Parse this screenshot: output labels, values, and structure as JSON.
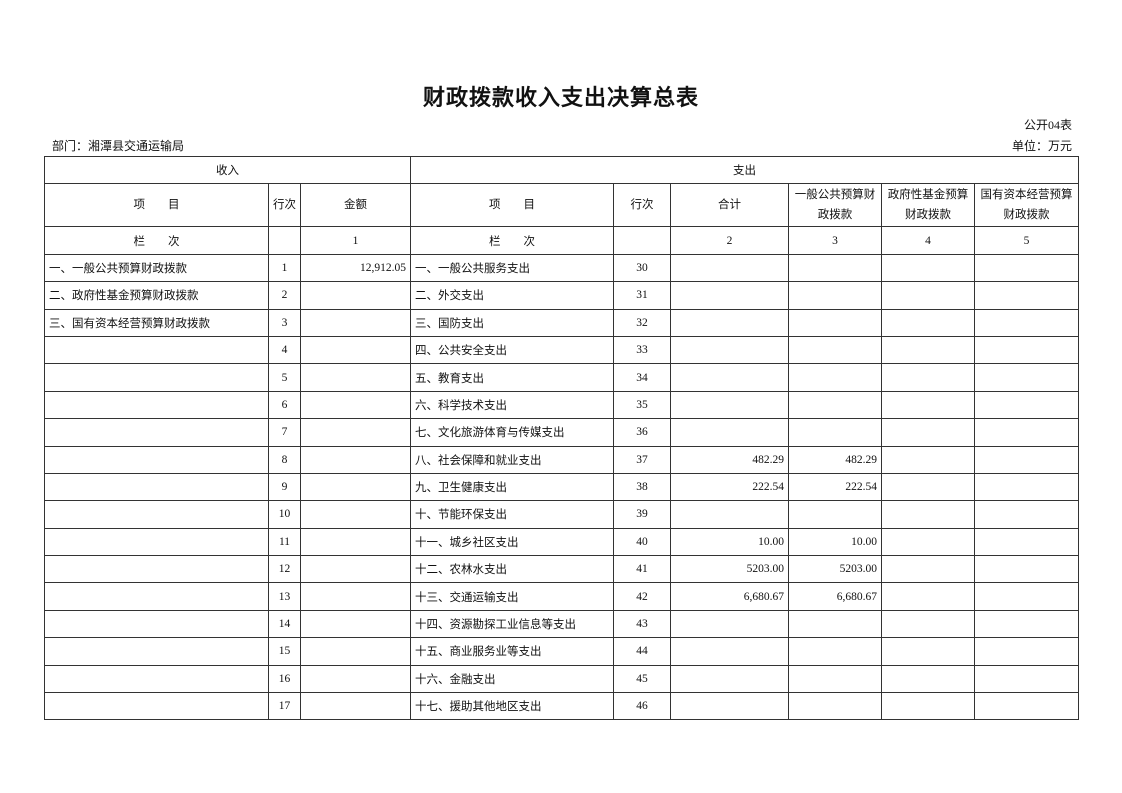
{
  "title": "财政拨款收入支出决算总表",
  "form_no": "公开04表",
  "department": "部门：湘潭县交通运输局",
  "unit": "单位：万元",
  "headers": {
    "income": "收入",
    "expense": "支出",
    "item": "项　　目",
    "row_no_income": "行次",
    "amount": "金额",
    "item2": "项　　目",
    "row_no": "行次",
    "total": "合计",
    "general": "一般公共预算财政拨款",
    "fund": "政府性基金预算财政拨款",
    "state": "国有资本经营预算财政拨款",
    "col_label": "栏　　次",
    "col1": "1",
    "col_label2": "栏　　次",
    "col2": "2",
    "col3": "3",
    "col4": "4",
    "col5": "5"
  },
  "rows": [
    {
      "in_item": "一、一般公共预算财政拨款",
      "in_no": "1",
      "in_amt": "12,912.05",
      "ex_item": "一、一般公共服务支出",
      "ex_no": "30",
      "total": "",
      "general": "",
      "fund": "",
      "state": ""
    },
    {
      "in_item": "二、政府性基金预算财政拨款",
      "in_no": "2",
      "in_amt": "",
      "ex_item": "二、外交支出",
      "ex_no": "31",
      "total": "",
      "general": "",
      "fund": "",
      "state": ""
    },
    {
      "in_item": "三、国有资本经营预算财政拨款",
      "in_no": "3",
      "in_amt": "",
      "ex_item": "三、国防支出",
      "ex_no": "32",
      "total": "",
      "general": "",
      "fund": "",
      "state": ""
    },
    {
      "in_item": "",
      "in_no": "4",
      "in_amt": "",
      "ex_item": "四、公共安全支出",
      "ex_no": "33",
      "total": "",
      "general": "",
      "fund": "",
      "state": ""
    },
    {
      "in_item": "",
      "in_no": "5",
      "in_amt": "",
      "ex_item": "五、教育支出",
      "ex_no": "34",
      "total": "",
      "general": "",
      "fund": "",
      "state": ""
    },
    {
      "in_item": "",
      "in_no": "6",
      "in_amt": "",
      "ex_item": "六、科学技术支出",
      "ex_no": "35",
      "total": "",
      "general": "",
      "fund": "",
      "state": ""
    },
    {
      "in_item": "",
      "in_no": "7",
      "in_amt": "",
      "ex_item": "七、文化旅游体育与传媒支出",
      "ex_no": "36",
      "total": "",
      "general": "",
      "fund": "",
      "state": ""
    },
    {
      "in_item": "",
      "in_no": "8",
      "in_amt": "",
      "ex_item": "八、社会保障和就业支出",
      "ex_no": "37",
      "total": "482.29",
      "general": "482.29",
      "fund": "",
      "state": ""
    },
    {
      "in_item": "",
      "in_no": "9",
      "in_amt": "",
      "ex_item": "九、卫生健康支出",
      "ex_no": "38",
      "total": "222.54",
      "general": "222.54",
      "fund": "",
      "state": ""
    },
    {
      "in_item": "",
      "in_no": "10",
      "in_amt": "",
      "ex_item": "十、节能环保支出",
      "ex_no": "39",
      "total": "",
      "general": "",
      "fund": "",
      "state": ""
    },
    {
      "in_item": "",
      "in_no": "11",
      "in_amt": "",
      "ex_item": "十一、城乡社区支出",
      "ex_no": "40",
      "total": "10.00",
      "general": "10.00",
      "fund": "",
      "state": ""
    },
    {
      "in_item": "",
      "in_no": "12",
      "in_amt": "",
      "ex_item": "十二、农林水支出",
      "ex_no": "41",
      "total": "5203.00",
      "general": "5203.00",
      "fund": "",
      "state": ""
    },
    {
      "in_item": "",
      "in_no": "13",
      "in_amt": "",
      "ex_item": "十三、交通运输支出",
      "ex_no": "42",
      "total": "6,680.67",
      "general": "6,680.67",
      "fund": "",
      "state": ""
    },
    {
      "in_item": "",
      "in_no": "14",
      "in_amt": "",
      "ex_item": "十四、资源勘探工业信息等支出",
      "ex_no": "43",
      "total": "",
      "general": "",
      "fund": "",
      "state": ""
    },
    {
      "in_item": "",
      "in_no": "15",
      "in_amt": "",
      "ex_item": "十五、商业服务业等支出",
      "ex_no": "44",
      "total": "",
      "general": "",
      "fund": "",
      "state": ""
    },
    {
      "in_item": "",
      "in_no": "16",
      "in_amt": "",
      "ex_item": "十六、金融支出",
      "ex_no": "45",
      "total": "",
      "general": "",
      "fund": "",
      "state": ""
    },
    {
      "in_item": "",
      "in_no": "17",
      "in_amt": "",
      "ex_item": "十七、援助其他地区支出",
      "ex_no": "46",
      "total": "",
      "general": "",
      "fund": "",
      "state": ""
    }
  ]
}
